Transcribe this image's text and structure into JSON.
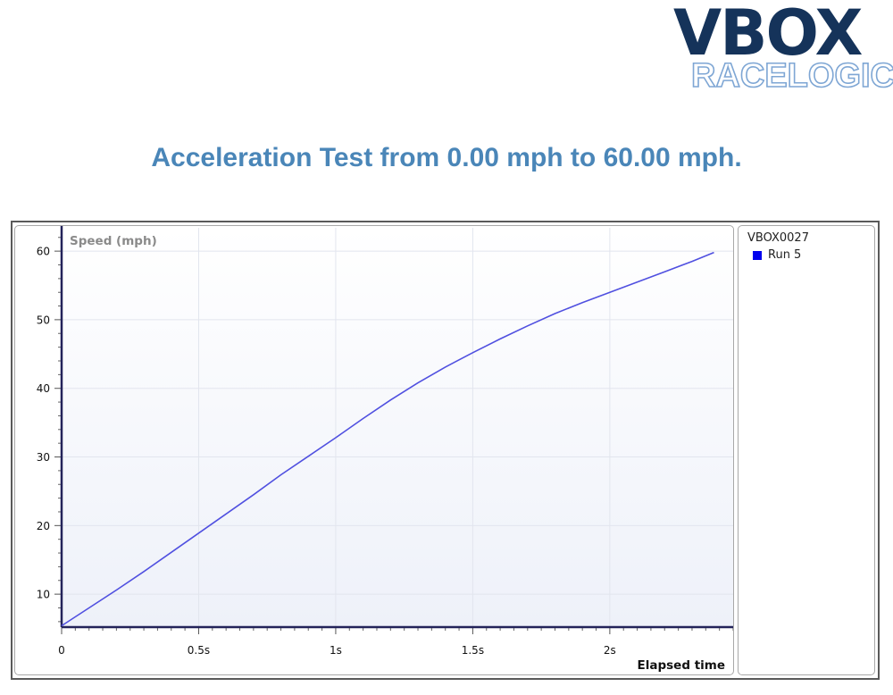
{
  "logo": {
    "top": "VBOX",
    "bottom": "RACELOGIC"
  },
  "title": "Acceleration Test from 0.00 mph to 60.00 mph.",
  "legend": {
    "title": "VBOX0027",
    "items": [
      {
        "label": "Run 5",
        "color": "#0000ee"
      }
    ]
  },
  "colors": {
    "title": "#4a86b8",
    "line": "#5050e0",
    "logo_dark": "#15335a",
    "logo_light": "#7ea6d4"
  },
  "chart_data": {
    "type": "line",
    "ylabel": "Speed (mph)",
    "xlabel": "Elapsed time",
    "xlim": [
      0,
      2.45
    ],
    "ylim": [
      5.2,
      63.4
    ],
    "x_ticks": [
      {
        "v": 0,
        "label": "0"
      },
      {
        "v": 0.5,
        "label": "0.5s"
      },
      {
        "v": 1,
        "label": "1s"
      },
      {
        "v": 1.5,
        "label": "1.5s"
      },
      {
        "v": 2,
        "label": "2s"
      }
    ],
    "y_ticks": [
      {
        "v": 10,
        "label": "10"
      },
      {
        "v": 20,
        "label": "20"
      },
      {
        "v": 30,
        "label": "30"
      },
      {
        "v": 40,
        "label": "40"
      },
      {
        "v": 50,
        "label": "50"
      },
      {
        "v": 60,
        "label": "60"
      }
    ],
    "grid": true,
    "legend_position": "right",
    "series": [
      {
        "name": "Run 5",
        "x": [
          0,
          0.1,
          0.2,
          0.3,
          0.4,
          0.5,
          0.6,
          0.7,
          0.8,
          0.9,
          1.0,
          1.1,
          1.2,
          1.3,
          1.4,
          1.5,
          1.6,
          1.7,
          1.8,
          1.9,
          2.0,
          2.1,
          2.2,
          2.3,
          2.38
        ],
        "y": [
          5.4,
          8.0,
          10.6,
          13.3,
          16.1,
          18.9,
          21.7,
          24.5,
          27.4,
          30.1,
          32.8,
          35.6,
          38.3,
          40.8,
          43.1,
          45.2,
          47.2,
          49.1,
          50.9,
          52.5,
          54.0,
          55.5,
          57.0,
          58.5,
          59.8
        ]
      }
    ]
  }
}
